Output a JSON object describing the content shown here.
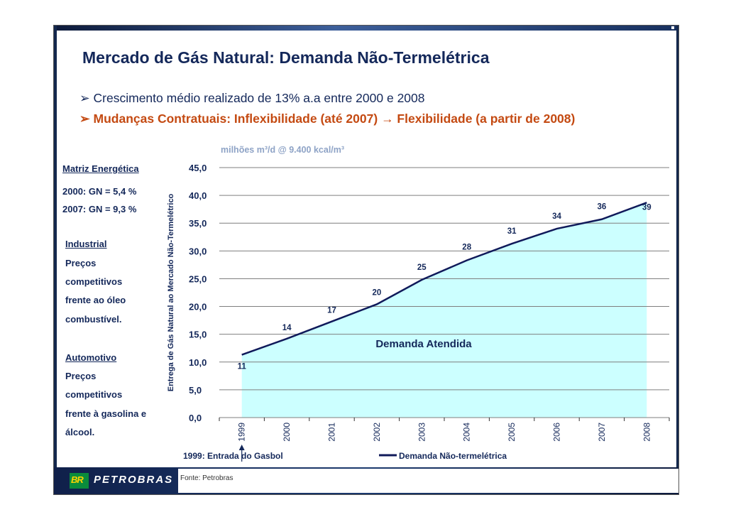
{
  "header": {
    "title": "Mercado de Gás Natural: Demanda Não-Termelétrica",
    "bullet1": "Crescimento médio realizado de 13% a.a entre 2000 e 2008",
    "bullet2_a": "Mudanças Contratuais: Inflexibilidade (até 2007) ",
    "bullet2_b": " Flexibilidade (a partir de 2008)"
  },
  "left_panel": {
    "matriz_title": "Matriz Energética",
    "matriz_2000": "2000: GN = 5,4 %",
    "matriz_2007": "2007: GN = 9,3 %",
    "industrial_title": "Industrial",
    "industrial_lines": [
      "Preços",
      "competitivos",
      "frente ao óleo",
      "combustível."
    ],
    "automotivo_title": "Automotivo",
    "automotivo_lines": [
      "Preços",
      "competitivos",
      "frente à gasolina e",
      "álcool."
    ]
  },
  "footer": {
    "brand": "PETROBRAS",
    "logo_text": "BR",
    "source": "Fonte: Petrobras"
  },
  "colors": {
    "navy": "#14285a",
    "orange": "#c44a12",
    "area_fill": "#ccffff",
    "line": "#101a5a",
    "logo_green": "#0a8c3c",
    "logo_yellow": "#ffd400"
  },
  "chart_data": {
    "type": "line",
    "unit_label": "milhões m³/d @ 9.400 kcal/m³",
    "ylabel": "Entrega de Gás Natural  ao Mercado Não-Termelétrico",
    "ylim": [
      0,
      45
    ],
    "yticks": [
      "0,0",
      "5,0",
      "10,0",
      "15,0",
      "20,0",
      "25,0",
      "30,0",
      "35,0",
      "40,0",
      "45,0"
    ],
    "categories": [
      "1999",
      "2000",
      "2001",
      "2002",
      "2003",
      "2004",
      "2005",
      "2006",
      "2007",
      "2008"
    ],
    "series": [
      {
        "name": "Demanda Não-termelétrica",
        "values": [
          11.3,
          14.2,
          17.3,
          20.4,
          24.8,
          28.3,
          31.3,
          34.0,
          35.7,
          38.7
        ]
      }
    ],
    "data_labels": [
      "11",
      "14",
      "17",
      "20",
      "25",
      "28",
      "31",
      "34",
      "36",
      "39"
    ],
    "area_label": "Demanda Atendida",
    "annotation": "1999: Entrada do Gasbol",
    "grid": true,
    "legend": "bottom"
  }
}
